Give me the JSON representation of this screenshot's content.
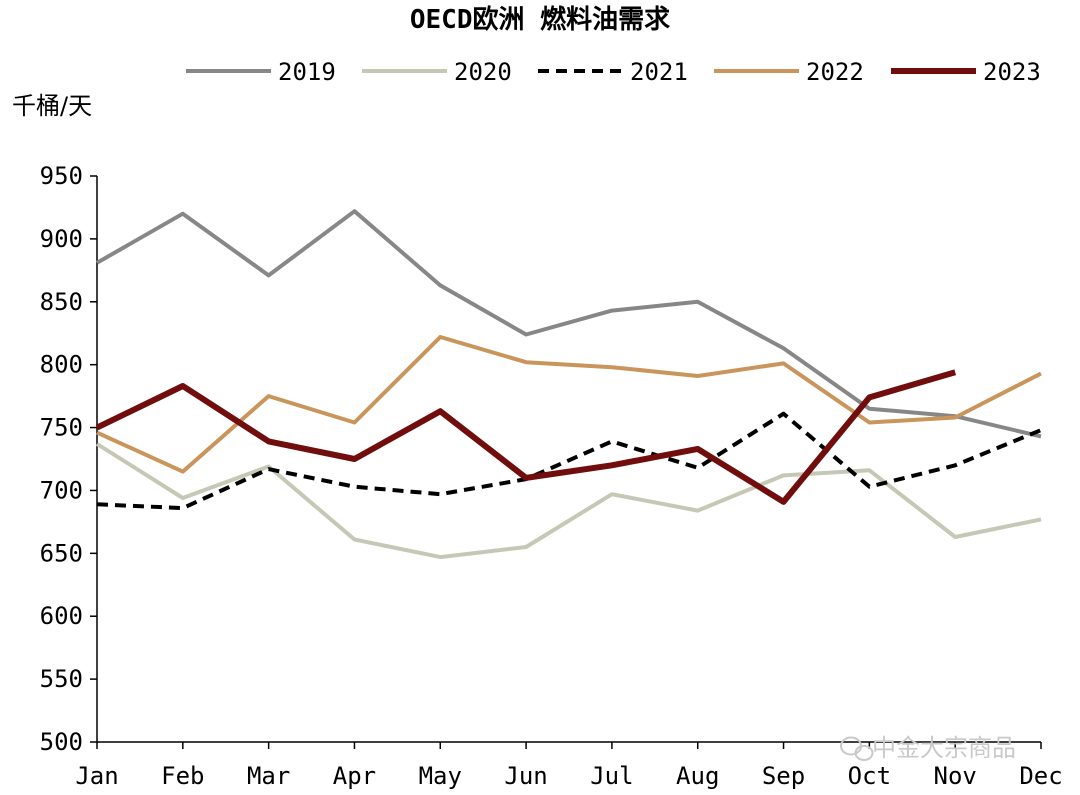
{
  "chart_data": {
    "type": "line",
    "title": "OECD欧洲 燃料油需求",
    "ylabel": "千桶/天",
    "xlabel": "",
    "categories": [
      "Jan",
      "Feb",
      "Mar",
      "Apr",
      "May",
      "Jun",
      "Jul",
      "Aug",
      "Sep",
      "Oct",
      "Nov",
      "Dec"
    ],
    "ylim": [
      500,
      950
    ],
    "yticks": [
      500,
      550,
      600,
      650,
      700,
      750,
      800,
      850,
      900,
      950
    ],
    "grid": false,
    "legend_position": "top",
    "series": [
      {
        "name": "2019",
        "color": "#878787",
        "dash": "solid",
        "width": 4,
        "values": [
          881,
          920,
          871,
          922,
          863,
          824,
          843,
          850,
          813,
          765,
          759,
          743
        ]
      },
      {
        "name": "2020",
        "color": "#c7c7b5",
        "dash": "solid",
        "width": 4,
        "values": [
          737,
          694,
          719,
          661,
          647,
          655,
          697,
          684,
          712,
          716,
          663,
          677
        ]
      },
      {
        "name": "2021",
        "color": "#000000",
        "dash": "dashed",
        "width": 4,
        "values": [
          689,
          686,
          717,
          703,
          697,
          709,
          739,
          718,
          761,
          703,
          720,
          748
        ]
      },
      {
        "name": "2022",
        "color": "#c9955a",
        "dash": "solid",
        "width": 4,
        "values": [
          746,
          715,
          775,
          754,
          822,
          802,
          798,
          791,
          801,
          754,
          758,
          793
        ]
      },
      {
        "name": "2023",
        "color": "#720d0d",
        "dash": "solid",
        "width": 6,
        "values": [
          750,
          783,
          739,
          725,
          763,
          710,
          720,
          733,
          691,
          774,
          794,
          null
        ]
      }
    ]
  },
  "watermark": {
    "text": "中金大宗商品",
    "icon": "wechat-icon"
  }
}
